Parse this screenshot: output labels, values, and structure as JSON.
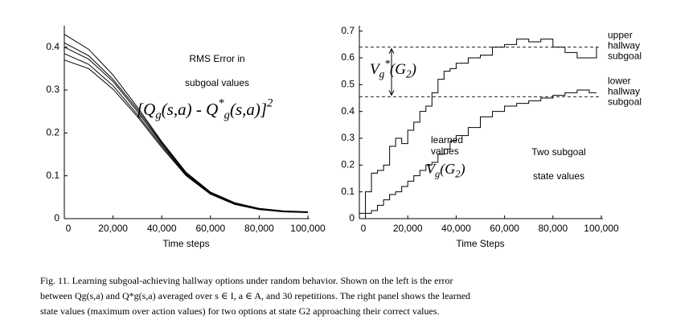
{
  "chart_data": [
    {
      "type": "line",
      "xlabel": "Time steps",
      "annotation": [
        "RMS Error in",
        "subgoal values"
      ],
      "formula": [
        "[Q",
        "g",
        "(s,a) - Q",
        "*",
        "g",
        "(s,a)]",
        "2"
      ],
      "x": [
        0,
        10000,
        20000,
        30000,
        40000,
        50000,
        60000,
        70000,
        80000,
        90000,
        100000
      ],
      "series": [
        {
          "color": "#000000",
          "values": [
            0.43,
            0.395,
            0.335,
            0.26,
            0.18,
            0.108,
            0.062,
            0.037,
            0.024,
            0.018,
            0.016
          ]
        },
        {
          "color": "#000000",
          "values": [
            0.41,
            0.38,
            0.325,
            0.255,
            0.177,
            0.106,
            0.061,
            0.036,
            0.023,
            0.017,
            0.015
          ]
        },
        {
          "color": "#000000",
          "values": [
            0.4,
            0.372,
            0.32,
            0.25,
            0.174,
            0.104,
            0.06,
            0.035,
            0.022,
            0.017,
            0.015
          ]
        },
        {
          "color": "#000000",
          "values": [
            0.385,
            0.36,
            0.31,
            0.243,
            0.17,
            0.102,
            0.058,
            0.034,
            0.022,
            0.016,
            0.015
          ]
        },
        {
          "color": "#000000",
          "values": [
            0.37,
            0.35,
            0.302,
            0.238,
            0.166,
            0.1,
            0.057,
            0.033,
            0.021,
            0.016,
            0.014
          ]
        }
      ],
      "xlim": [
        0,
        100000
      ],
      "xticks": [
        0,
        {
          "value": 20000,
          "label": "20,000"
        },
        {
          "value": 40000,
          "label": "40,000"
        },
        {
          "value": 60000,
          "label": "60,000"
        },
        {
          "value": 80000,
          "label": "80,000"
        },
        {
          "value": 100000,
          "label": "100,000"
        }
      ],
      "ylim": [
        0,
        0.45
      ],
      "yticks": [
        0,
        0.1,
        0.2,
        0.3,
        0.4
      ]
    },
    {
      "type": "line",
      "step": true,
      "xlabel": "Time Steps",
      "annotation": [
        "Two subgoal",
        "state values"
      ],
      "gap_label": [
        "V",
        "g",
        "*",
        "(G",
        "2",
        ")"
      ],
      "learned_label": [
        "learned",
        "values"
      ],
      "learned_formula": [
        "V",
        "g",
        "(G",
        "2",
        ")"
      ],
      "reference_lines": [
        0.64,
        0.455
      ],
      "x": [
        0,
        2500,
        5000,
        7500,
        10000,
        12500,
        15000,
        17500,
        20000,
        22500,
        25000,
        27500,
        30000,
        32500,
        35000,
        37500,
        40000,
        45000,
        50000,
        55000,
        60000,
        65000,
        70000,
        75000,
        80000,
        85000,
        90000,
        95000,
        98000
      ],
      "series": [
        {
          "name": "upper hallway subgoal",
          "color": "#000000",
          "values": [
            0.02,
            0.1,
            0.17,
            0.18,
            0.2,
            0.27,
            0.3,
            0.28,
            0.33,
            0.36,
            0.4,
            0.42,
            0.47,
            0.52,
            0.55,
            0.56,
            0.58,
            0.6,
            0.61,
            0.64,
            0.65,
            0.67,
            0.66,
            0.67,
            0.64,
            0.62,
            0.6,
            0.6,
            0.64
          ]
        },
        {
          "name": "lower hallway subgoal",
          "color": "#000000",
          "values": [
            0.0,
            0.02,
            0.03,
            0.05,
            0.07,
            0.09,
            0.1,
            0.12,
            0.14,
            0.16,
            0.18,
            0.2,
            0.21,
            0.24,
            0.26,
            0.29,
            0.31,
            0.34,
            0.38,
            0.4,
            0.42,
            0.43,
            0.44,
            0.45,
            0.46,
            0.47,
            0.48,
            0.47,
            0.47
          ]
        }
      ],
      "xlim": [
        0,
        100000
      ],
      "xticks": [
        0,
        {
          "value": 20000,
          "label": "20,000"
        },
        {
          "value": 40000,
          "label": "40,000"
        },
        {
          "value": 60000,
          "label": "60,000"
        },
        {
          "value": 80000,
          "label": "80,000"
        },
        {
          "value": 100000,
          "label": "100,000"
        }
      ],
      "ylim": [
        0,
        0.72
      ],
      "yticks": [
        0,
        0.1,
        0.2,
        0.3,
        0.4,
        0.5,
        0.6,
        0.7
      ]
    }
  ],
  "caption": [
    "Fig. 11. Learning subgoal-achieving hallway options under random behavior. Shown on the left is the error",
    "between Qg(s,a) and Q*g(s,a) averaged over s ∈ I, a ∈ A, and 30 repetitions. The right panel shows the learned",
    "state values (maximum over action values) for two options at state G2 approaching their correct values."
  ]
}
